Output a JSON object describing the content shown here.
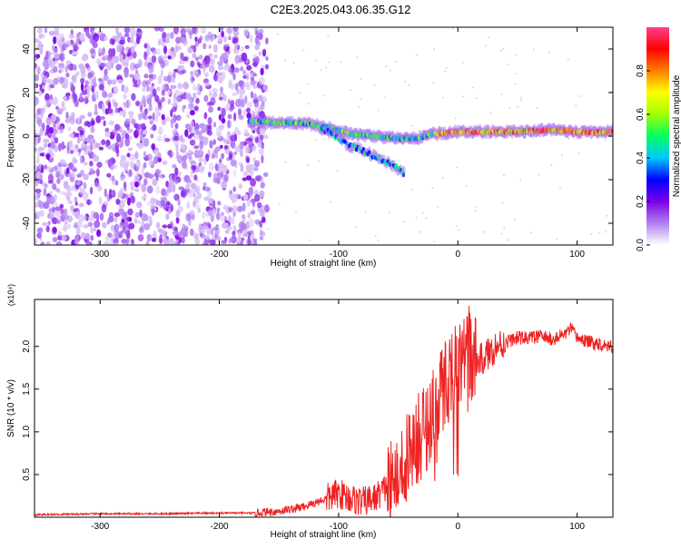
{
  "title": "C2E3.2025.043.06.35.G12",
  "chart_data": [
    {
      "type": "heatmap",
      "xlabel": "Height of straight line (km)",
      "ylabel": "Frequency (Hz)",
      "xlim": [
        -355,
        130
      ],
      "ylim": [
        -50,
        50
      ],
      "xticks": [
        -300,
        -200,
        -100,
        0,
        100
      ],
      "xtick_labels": [
        "-300",
        "-200",
        "-100",
        "0",
        "100"
      ],
      "yticks": [
        -40,
        -20,
        0,
        20,
        40
      ],
      "ytick_labels": [
        "-40",
        "-20",
        "0",
        "20",
        "40"
      ],
      "noise_region_x": [
        -355,
        -160
      ],
      "signal_track": [
        {
          "x": -175,
          "freq": 7
        },
        {
          "x": -150,
          "freq": 6
        },
        {
          "x": -130,
          "freq": 6
        },
        {
          "x": -110,
          "freq": 4
        },
        {
          "x": -90,
          "freq": 1
        },
        {
          "x": -70,
          "freq": 0
        },
        {
          "x": -50,
          "freq": -1
        },
        {
          "x": -35,
          "freq": -1
        },
        {
          "x": -20,
          "freq": 1
        },
        {
          "x": 0,
          "freq": 2
        },
        {
          "x": 20,
          "freq": 2
        },
        {
          "x": 50,
          "freq": 2
        },
        {
          "x": 80,
          "freq": 3
        },
        {
          "x": 100,
          "freq": 2
        },
        {
          "x": 130,
          "freq": 2
        }
      ],
      "secondary_branch": [
        {
          "x": -115,
          "freq": 4
        },
        {
          "x": -95,
          "freq": -3
        },
        {
          "x": -75,
          "freq": -8
        },
        {
          "x": -55,
          "freq": -13
        },
        {
          "x": -45,
          "freq": -17
        }
      ],
      "grid": false
    },
    {
      "type": "colorbar",
      "label": "Normalized spectral amplitude",
      "ylim": [
        0,
        1
      ],
      "ticks": [
        0.0,
        0.2,
        0.4,
        0.6,
        0.8
      ],
      "tick_labels": [
        "0.0",
        "0.2",
        "0.4",
        "0.6",
        "0.8"
      ],
      "colormap": [
        "#ffffff",
        "#b080f0",
        "#7a00e6",
        "#0000ff",
        "#00c8ff",
        "#00ff60",
        "#a0ff00",
        "#ffff00",
        "#ff8000",
        "#ff0000",
        "#ff4090"
      ]
    },
    {
      "type": "line",
      "xlabel": "Height of straight line (km)",
      "ylabel": "SNR (10 * v/v)",
      "y_multiplier": "(x10⁴)",
      "xlim": [
        -355,
        130
      ],
      "ylim": [
        0,
        2.55
      ],
      "xticks": [
        -300,
        -200,
        -100,
        0,
        100
      ],
      "xtick_labels": [
        "-300",
        "-200",
        "-100",
        "0",
        "100"
      ],
      "yticks": [
        0.5,
        1.0,
        1.5,
        2.0
      ],
      "ytick_labels": [
        "0.5",
        "1.0",
        "1.5",
        "2.0"
      ],
      "series": [
        {
          "color": "#ee2222",
          "x": [
            -355,
            -300,
            -250,
            -200,
            -170,
            -150,
            -130,
            -110,
            -100,
            -90,
            -80,
            -70,
            -60,
            -50,
            -45,
            -40,
            -35,
            -30,
            -25,
            -20,
            -15,
            -10,
            -5,
            0,
            5,
            10,
            15,
            20,
            25,
            30,
            40,
            50,
            60,
            70,
            80,
            90,
            95,
            100,
            110,
            120,
            130
          ],
          "y": [
            0.03,
            0.04,
            0.04,
            0.05,
            0.05,
            0.07,
            0.12,
            0.22,
            0.28,
            0.22,
            0.18,
            0.22,
            0.35,
            0.5,
            0.62,
            0.72,
            0.85,
            1.0,
            1.1,
            1.25,
            1.45,
            1.6,
            1.7,
            1.75,
            1.85,
            1.95,
            1.8,
            1.85,
            1.9,
            1.98,
            2.05,
            2.1,
            2.1,
            2.12,
            2.08,
            2.15,
            2.2,
            2.1,
            2.05,
            2.03,
            2.0
          ]
        }
      ],
      "grid": false
    }
  ]
}
